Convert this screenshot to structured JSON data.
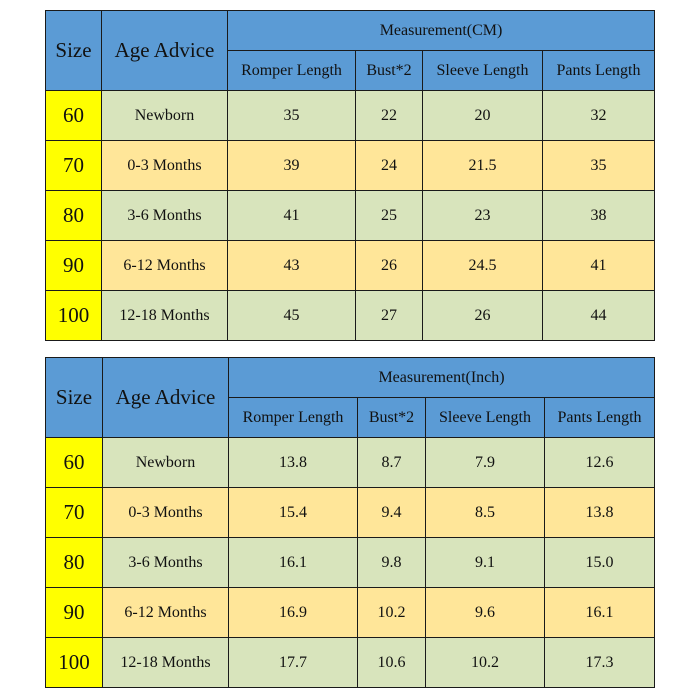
{
  "colors": {
    "header": "#5b9bd5",
    "size_column": "#ffff00",
    "row_green": "#d8e4bc",
    "row_orange": "#ffe699"
  },
  "tables": [
    {
      "size_header": "Size",
      "age_header": "Age Advice",
      "group_header": "Measurement(CM)",
      "columns": [
        "Romper Length",
        "Bust*2",
        "Sleeve Length",
        "Pants Length"
      ],
      "rows": [
        {
          "size": "60",
          "age": "Newborn",
          "values": [
            "35",
            "22",
            "20",
            "32"
          ]
        },
        {
          "size": "70",
          "age": "0-3 Months",
          "values": [
            "39",
            "24",
            "21.5",
            "35"
          ]
        },
        {
          "size": "80",
          "age": "3-6 Months",
          "values": [
            "41",
            "25",
            "23",
            "38"
          ]
        },
        {
          "size": "90",
          "age": "6-12 Months",
          "values": [
            "43",
            "26",
            "24.5",
            "41"
          ]
        },
        {
          "size": "100",
          "age": "12-18 Months",
          "values": [
            "45",
            "27",
            "26",
            "44"
          ]
        }
      ]
    },
    {
      "size_header": "Size",
      "age_header": "Age Advice",
      "group_header": "Measurement(Inch)",
      "columns": [
        "Romper Length",
        "Bust*2",
        "Sleeve Length",
        "Pants Length"
      ],
      "rows": [
        {
          "size": "60",
          "age": "Newborn",
          "values": [
            "13.8",
            "8.7",
            "7.9",
            "12.6"
          ]
        },
        {
          "size": "70",
          "age": "0-3 Months",
          "values": [
            "15.4",
            "9.4",
            "8.5",
            "13.8"
          ]
        },
        {
          "size": "80",
          "age": "3-6 Months",
          "values": [
            "16.1",
            "9.8",
            "9.1",
            "15.0"
          ]
        },
        {
          "size": "90",
          "age": "6-12 Months",
          "values": [
            "16.9",
            "10.2",
            "9.6",
            "16.1"
          ]
        },
        {
          "size": "100",
          "age": "12-18 Months",
          "values": [
            "17.7",
            "10.6",
            "10.2",
            "17.3"
          ]
        }
      ]
    }
  ]
}
